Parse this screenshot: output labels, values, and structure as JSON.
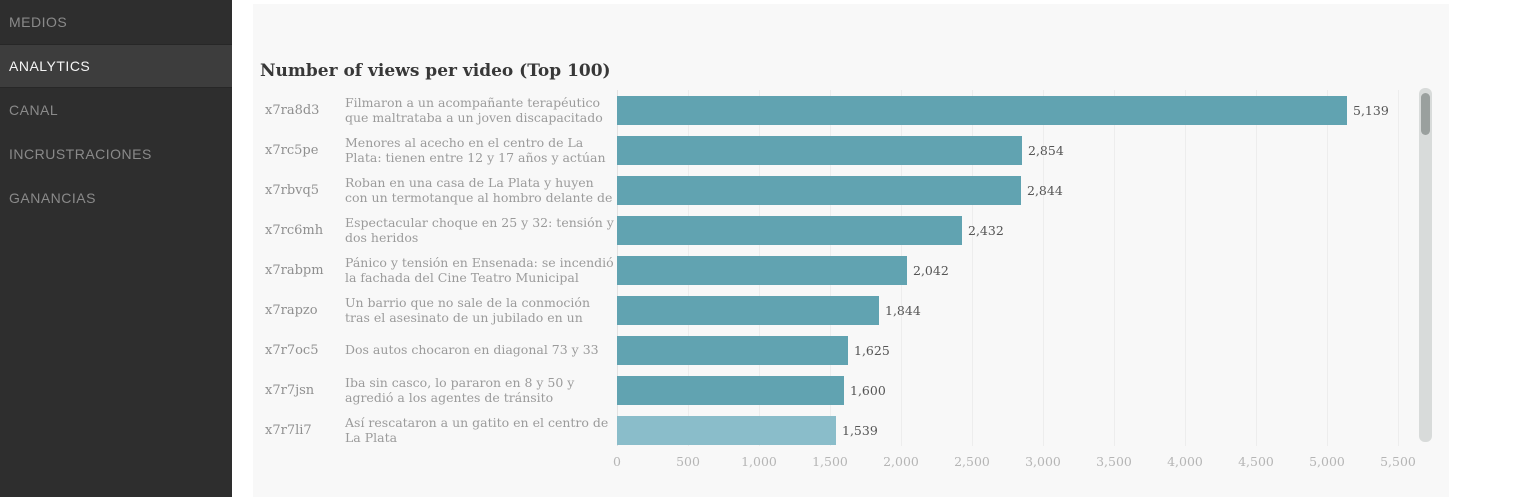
{
  "sidebar": {
    "items": [
      {
        "label": "MEDIOS",
        "active": false
      },
      {
        "label": "ANALYTICS",
        "active": true
      },
      {
        "label": "CANAL",
        "active": false
      },
      {
        "label": "INCRUSTRACIONES",
        "active": false
      },
      {
        "label": "GANANCIAS",
        "active": false
      }
    ]
  },
  "colors": {
    "bar": "#61a3b1",
    "bar_highlight": "#8abdca",
    "sidebar_bg": "#2e2e2e",
    "panel_bg": "#f8f8f8"
  },
  "chart_data": {
    "type": "bar",
    "orientation": "horizontal",
    "title": "Number of views per video (Top 100)",
    "categories": [
      "x7ra8d3",
      "x7rc5pe",
      "x7rbvq5",
      "x7rc6mh",
      "x7rabpm",
      "x7rapzo",
      "x7r7oc5",
      "x7r7jsn",
      "x7r7li7"
    ],
    "values": [
      5139,
      2854,
      2844,
      2432,
      2042,
      1844,
      1625,
      1600,
      1539
    ],
    "rows": [
      {
        "video_id": "x7ra8d3",
        "video_title": "Filmaron a un acompañante terapéutico que maltrataba a un joven discapacitado",
        "value": 5139,
        "value_label": "5,139",
        "highlighted": false
      },
      {
        "video_id": "x7rc5pe",
        "video_title": "Menores al acecho en el centro de La Plata: tienen entre 12 y 17 años y actúan armados",
        "value": 2854,
        "value_label": "2,854",
        "highlighted": false
      },
      {
        "video_id": "x7rbvq5",
        "video_title": "Roban en una casa de La Plata y huyen con un termotanque al hombro delante de los policías",
        "value": 2844,
        "value_label": "2,844",
        "highlighted": false
      },
      {
        "video_id": "x7rc6mh",
        "video_title": "Espectacular choque en 25 y 32: tensión y dos heridos",
        "value": 2432,
        "value_label": "2,432",
        "highlighted": false
      },
      {
        "video_id": "x7rabpm",
        "video_title": "Pánico y tensión en Ensenada: se incendió la fachada del Cine Teatro Municipal",
        "value": 2042,
        "value_label": "2,042",
        "highlighted": false
      },
      {
        "video_id": "x7rapzo",
        "video_title": "Un barrio que no sale de la conmoción tras el asesinato de un jubilado en un asalto",
        "value": 1844,
        "value_label": "1,844",
        "highlighted": false
      },
      {
        "video_id": "x7r7oc5",
        "video_title": "Dos autos chocaron en diagonal 73 y 33",
        "value": 1625,
        "value_label": "1,625",
        "highlighted": false
      },
      {
        "video_id": "x7r7jsn",
        "video_title": "Iba sin casco, lo pararon en 8 y 50 y agredió a los agentes de tránsito",
        "value": 1600,
        "value_label": "1,600",
        "highlighted": false
      },
      {
        "video_id": "x7r7li7",
        "video_title": "Así rescataron a un gatito en el centro de La Plata",
        "value": 1539,
        "value_label": "1,539",
        "highlighted": true
      }
    ],
    "x_ticks": [
      "0",
      "500",
      "1,000",
      "1,500",
      "2,000",
      "2,500",
      "3,000",
      "3,500",
      "4,000",
      "4,500",
      "5,000",
      "5,500"
    ],
    "xlim": [
      0,
      5500
    ],
    "grid": true,
    "legend": "none"
  }
}
